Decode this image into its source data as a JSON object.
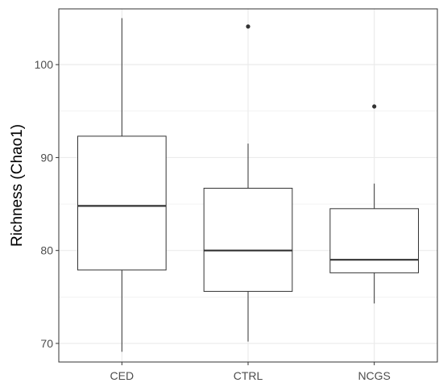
{
  "chart_data": {
    "type": "boxplot",
    "title": "",
    "xlabel": "",
    "ylabel": "Richness (Chao1)",
    "ylim": [
      68,
      106
    ],
    "yticks": [
      70,
      80,
      90,
      100
    ],
    "grid": true,
    "categories": [
      "CED",
      "CTRL",
      "NCGS"
    ],
    "boxes": [
      {
        "category": "CED",
        "whisker_low": 69.1,
        "q1": 77.9,
        "median": 84.8,
        "q3": 92.3,
        "whisker_high": 105.0,
        "outliers": []
      },
      {
        "category": "CTRL",
        "whisker_low": 70.2,
        "q1": 75.6,
        "median": 80.0,
        "q3": 86.7,
        "whisker_high": 91.5,
        "outliers": [
          104.1
        ]
      },
      {
        "category": "NCGS",
        "whisker_low": 74.3,
        "q1": 77.6,
        "median": 79.0,
        "q3": 84.5,
        "whisker_high": 87.2,
        "outliers": [
          95.5
        ]
      }
    ],
    "colors": {
      "box_fill": "#ffffff",
      "box_stroke": "#333333",
      "grid": "#ebebeb",
      "panel_border": "#333333",
      "tick_text": "#4d4d4d"
    }
  }
}
